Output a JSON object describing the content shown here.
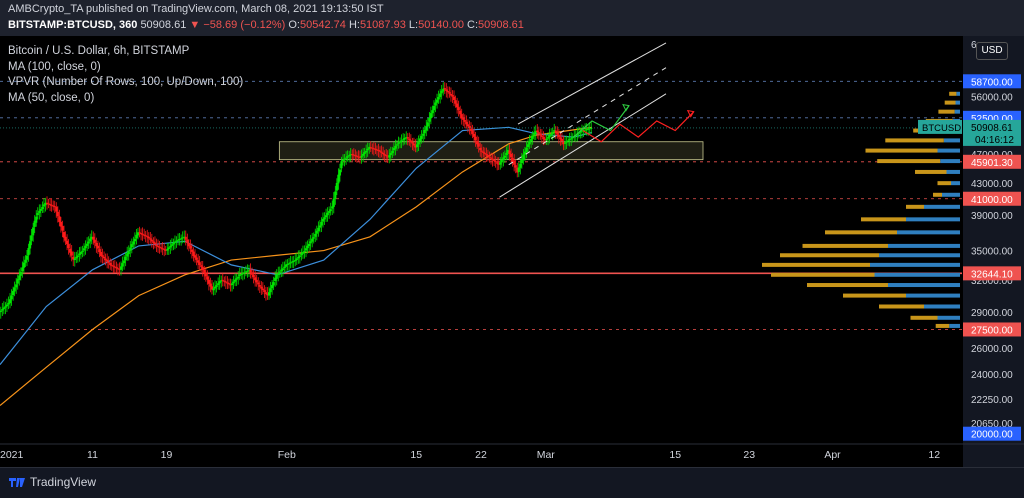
{
  "header": {
    "line1": "AMBCrypto_TA published on TradingView.com, March 08, 2021 19:13:50 IST",
    "symbol": "BITSTAMP:BTCUSD, 360",
    "last": "50908.61",
    "change": "−58.69 (−0.12%)",
    "o_label": "O:",
    "o_value": "50542.74",
    "h_label": "H:",
    "h_value": "51087.93",
    "l_label": "L:",
    "l_value": "50140.00",
    "c_label": "C:",
    "c_value": "50908.61"
  },
  "legend": {
    "title": "Bitcoin / U.S. Dollar, 6h, BITSTAMP",
    "ma100": "MA (100, close, 0)",
    "vpvr": "VPVR (Number Of Rows, 100, Up/Down, 100)",
    "ma50": "MA (50, close, 0)"
  },
  "currency_button": "USD",
  "footer": {
    "brand": "TradingView"
  },
  "colors": {
    "up": "#26a69a",
    "candle_up": "#00e600",
    "candle_down": "#ff1a1a",
    "ma100": "#f7931a",
    "ma50": "#3c8fdc",
    "red_level": "#ef5350",
    "blue_level": "#2962ff",
    "vol_up": "#2f7fbf",
    "vol_down": "#c8951a"
  },
  "chart_data": {
    "type": "candlestick",
    "y_scale": "log",
    "ylim": [
      19500,
      67000
    ],
    "x_labels": [
      {
        "label": "2021",
        "x": 0
      },
      {
        "label": "11",
        "x": 10
      },
      {
        "label": "19",
        "x": 18
      },
      {
        "label": "Feb",
        "x": 31
      },
      {
        "label": "15",
        "x": 45
      },
      {
        "label": "22",
        "x": 52
      },
      {
        "label": "Mar",
        "x": 59
      },
      {
        "label": "15",
        "x": 73
      },
      {
        "label": "23",
        "x": 81
      },
      {
        "label": "Apr",
        "x": 90
      },
      {
        "label": "12",
        "x": 101
      }
    ],
    "y_ticks": [
      20650,
      22250,
      24000,
      26000,
      29000,
      32000,
      35000,
      39000,
      43000,
      47000,
      52500,
      56000
    ],
    "y_tick_labels": [
      "20650.00",
      "22250.00",
      "24000.00",
      "26000.00",
      "29000.00",
      "32000.00",
      "35000.00",
      "39000.00",
      "43000.00",
      "47000.00",
      "52500.00",
      "56000.00"
    ],
    "top_partial_tick": "6",
    "price_labels": [
      {
        "value": 58700,
        "text": "58700.00",
        "kind": "blue"
      },
      {
        "value": 52500,
        "text": "52500.00",
        "kind": "blue"
      },
      {
        "value": 45901.3,
        "text": "45901.30",
        "kind": "red"
      },
      {
        "value": 41000,
        "text": "41000.00",
        "kind": "red"
      },
      {
        "value": 32644.1,
        "text": "32644.10",
        "kind": "red"
      },
      {
        "value": 27500,
        "text": "27500.00",
        "kind": "red"
      },
      {
        "value": 20000,
        "text": "20000.00",
        "kind": "blue"
      }
    ],
    "current_price": {
      "value": 50908.61,
      "label": "BTCUSD",
      "price": "50908.61",
      "timer": "04:16:12"
    },
    "levels": [
      {
        "value": 58700,
        "style": "dashed-blue"
      },
      {
        "value": 52500,
        "style": "dashed-blue"
      },
      {
        "value": 45901.3,
        "style": "dashed-red"
      },
      {
        "value": 41000,
        "style": "dashed-red"
      },
      {
        "value": 32644.1,
        "style": "solid-red"
      },
      {
        "value": 27500,
        "style": "dashed-red"
      }
    ],
    "support_zone": {
      "x0": 30.2,
      "x1": 76,
      "y0": 46200,
      "y1": 48800
    },
    "price_path_x": [
      0,
      1,
      2,
      3,
      4,
      5,
      6,
      7,
      8,
      9,
      10,
      11,
      12,
      13,
      14,
      15,
      16,
      17,
      18,
      19,
      20,
      21,
      22,
      23,
      24,
      25,
      26,
      27,
      28,
      29,
      30,
      31,
      32,
      33,
      34,
      35,
      36,
      37,
      38,
      39,
      40,
      41,
      42,
      43,
      44,
      45,
      46,
      47,
      48,
      49,
      50,
      51,
      52,
      53,
      54,
      55,
      56,
      57,
      58,
      59,
      60,
      61,
      62,
      63,
      64
    ],
    "price_path_y": [
      29000,
      29800,
      32000,
      34500,
      39000,
      40500,
      40000,
      36500,
      34000,
      35000,
      36500,
      34500,
      33500,
      33000,
      35000,
      37000,
      36500,
      35500,
      35000,
      36000,
      36500,
      34500,
      33000,
      31000,
      32000,
      31500,
      32500,
      33000,
      31500,
      30500,
      32500,
      33500,
      34000,
      35000,
      36500,
      38500,
      40000,
      46000,
      47000,
      46500,
      48000,
      47500,
      46500,
      48500,
      49500,
      48000,
      50500,
      54500,
      57500,
      56000,
      52500,
      50500,
      47500,
      46500,
      45500,
      47500,
      44500,
      48000,
      50500,
      49000,
      50500,
      48500,
      49500,
      50500,
      50900
    ],
    "ma50": {
      "x": [
        0,
        5,
        10,
        15,
        20,
        25,
        30,
        35,
        40,
        45,
        50,
        55,
        58,
        62,
        64
      ],
      "y": [
        24700,
        29500,
        33000,
        35500,
        36000,
        33500,
        32500,
        34000,
        38500,
        45000,
        50500,
        51000,
        50000,
        49500,
        50200
      ]
    },
    "ma100": {
      "x": [
        0,
        5,
        10,
        15,
        20,
        25,
        30,
        35,
        40,
        45,
        50,
        55,
        58,
        62,
        64
      ],
      "y": [
        21800,
        24500,
        27500,
        30500,
        32500,
        34000,
        34500,
        35000,
        36500,
        40000,
        44500,
        48500,
        49800,
        50600,
        51000
      ]
    },
    "channel": {
      "upper": {
        "x": [
          56,
          72
        ],
        "y": [
          51500,
          66000
        ]
      },
      "lower": {
        "x": [
          54,
          72
        ],
        "y": [
          41200,
          56500
        ]
      },
      "mid": {
        "x": [
          55,
          72
        ],
        "y": [
          45500,
          61200
        ]
      }
    },
    "scenario_green": {
      "x": [
        62,
        64,
        66,
        68
      ],
      "y": [
        49500,
        52000,
        50500,
        54500
      ]
    },
    "scenario_red": {
      "x": [
        63,
        65,
        67,
        69,
        71,
        73,
        75
      ],
      "y": [
        50500,
        48800,
        51500,
        49500,
        52000,
        50500,
        53500
      ]
    },
    "volume_profile": [
      {
        "price": 56500,
        "up": 4,
        "down": 8
      },
      {
        "price": 55000,
        "up": 5,
        "down": 12
      },
      {
        "price": 53500,
        "up": 6,
        "down": 18
      },
      {
        "price": 52000,
        "up": 8,
        "down": 30
      },
      {
        "price": 50500,
        "up": 12,
        "down": 40
      },
      {
        "price": 49000,
        "up": 18,
        "down": 65
      },
      {
        "price": 47500,
        "up": 25,
        "down": 80
      },
      {
        "price": 46000,
        "up": 22,
        "down": 70
      },
      {
        "price": 44500,
        "up": 15,
        "down": 35
      },
      {
        "price": 43000,
        "up": 10,
        "down": 15
      },
      {
        "price": 41500,
        "up": 20,
        "down": 10
      },
      {
        "price": 40000,
        "up": 40,
        "down": 20
      },
      {
        "price": 38500,
        "up": 60,
        "down": 50
      },
      {
        "price": 37000,
        "up": 70,
        "down": 80
      },
      {
        "price": 35500,
        "up": 80,
        "down": 95
      },
      {
        "price": 34500,
        "up": 90,
        "down": 110
      },
      {
        "price": 33500,
        "up": 100,
        "down": 120
      },
      {
        "price": 32500,
        "up": 95,
        "down": 115
      },
      {
        "price": 31500,
        "up": 80,
        "down": 90
      },
      {
        "price": 30500,
        "up": 60,
        "down": 70
      },
      {
        "price": 29500,
        "up": 40,
        "down": 50
      },
      {
        "price": 28500,
        "up": 25,
        "down": 30
      },
      {
        "price": 27800,
        "up": 12,
        "down": 15
      }
    ]
  }
}
